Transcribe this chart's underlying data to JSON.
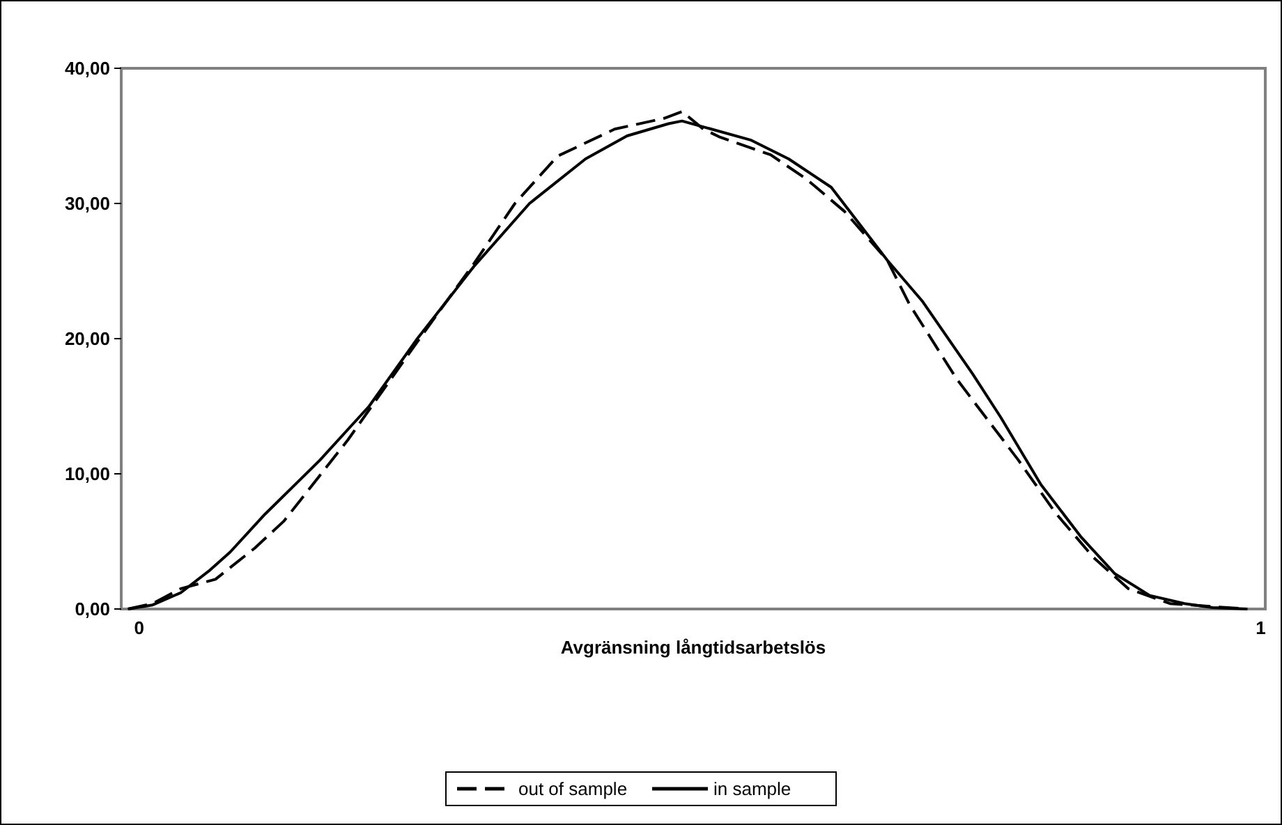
{
  "chart_data": {
    "type": "line",
    "xlabel": "Avgränsning långtidsarbetslös",
    "xlim": [
      -0.016,
      1.004
    ],
    "xticks": [
      0,
      1
    ],
    "ylim": [
      0,
      40
    ],
    "yticks": [
      {
        "value": 0,
        "label": "0,00"
      },
      {
        "value": 10,
        "label": "10,00"
      },
      {
        "value": 20,
        "label": "20,00"
      },
      {
        "value": 30,
        "label": "30,00"
      },
      {
        "value": 40,
        "label": "40,00"
      }
    ],
    "grid": false,
    "legend": "bottom",
    "series": [
      {
        "name": "out of sample",
        "color": "#000000",
        "line_style": "dashed",
        "x": [
          -0.01,
          0.012,
          0.037,
          0.068,
          0.103,
          0.129,
          0.186,
          0.25,
          0.298,
          0.335,
          0.373,
          0.424,
          0.468,
          0.484,
          0.503,
          0.518,
          0.563,
          0.595,
          0.629,
          0.667,
          0.687,
          0.729,
          0.75,
          0.784,
          0.817,
          0.851,
          0.882,
          0.919,
          0.988
        ],
        "values": [
          0,
          0.4,
          1.5,
          2.2,
          4.5,
          6.5,
          12.5,
          20,
          25.5,
          30,
          33.5,
          35.5,
          36.3,
          36.8,
          35.5,
          34.9,
          33.6,
          31.8,
          29.4,
          25.8,
          22.5,
          17,
          14.7,
          11,
          7.1,
          3.8,
          1.5,
          0.4,
          0
        ]
      },
      {
        "name": "in sample",
        "color": "#000000",
        "line_style": "solid",
        "x": [
          -0.01,
          0.012,
          0.037,
          0.062,
          0.081,
          0.112,
          0.161,
          0.205,
          0.248,
          0.298,
          0.348,
          0.398,
          0.435,
          0.472,
          0.484,
          0.545,
          0.579,
          0.617,
          0.667,
          0.698,
          0.743,
          0.768,
          0.804,
          0.84,
          0.87,
          0.901,
          0.932,
          0.957,
          0.988
        ],
        "values": [
          0,
          0.3,
          1.2,
          2.8,
          4.2,
          7,
          11,
          15,
          20,
          25.3,
          30,
          33.3,
          35,
          35.9,
          36.1,
          34.7,
          33.3,
          31.2,
          25.8,
          22.8,
          17.4,
          14.2,
          9.2,
          5.3,
          2.6,
          1,
          0.4,
          0.1,
          0
        ]
      }
    ]
  }
}
